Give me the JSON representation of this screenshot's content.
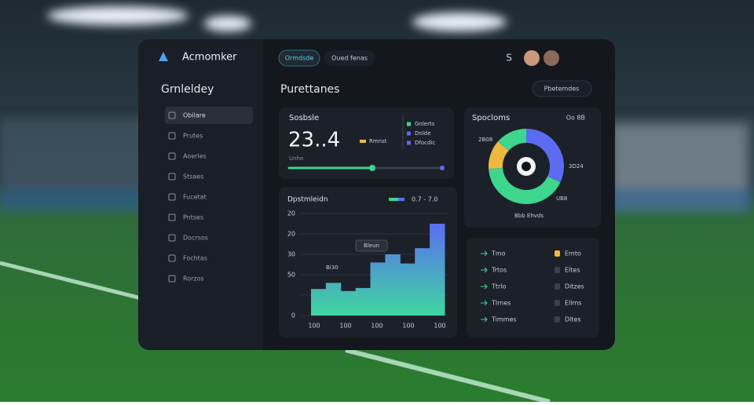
{
  "app": {
    "logo": "Acmomker",
    "tabs": [
      "Ormdsde",
      "Oued fenas"
    ],
    "user_initial": "S"
  },
  "sidebar": {
    "title": "Grnleldey",
    "items": [
      "Obilare",
      "Prutes",
      "Aoerles",
      "Stsaes",
      "Fucetat",
      "Pntses",
      "Docrsos",
      "Fochtas",
      "Rorzos"
    ]
  },
  "main": {
    "title": "Purettanes",
    "button": "Pbetemdes"
  },
  "stat_card": {
    "title": "Sosbsle",
    "value": "23..4",
    "badge": "Rmnst",
    "legend": [
      "Gnlerts",
      "Dnlde",
      "Dfocdic"
    ],
    "footer": "Unhe"
  },
  "bar_chart": {
    "type": "area",
    "title": "Dpstmleidn",
    "legend": "0.7 - 7.0",
    "annotations": [
      "Bleun",
      "Bi30"
    ],
    "y_labels": [
      "20",
      "20",
      "30",
      "50",
      "0"
    ],
    "x_labels": [
      "100",
      "100",
      "100",
      "100",
      "100"
    ],
    "ylim": [
      0,
      5
    ],
    "values": [
      1.3,
      1.6,
      1.2,
      1.35,
      2.6,
      3.0,
      2.55,
      3.3,
      4.5
    ]
  },
  "donut": {
    "type": "pie",
    "title": "Spocloms",
    "legend": "Oo 8B",
    "labels": [
      "2B08",
      "3D24",
      "UB8",
      "Bbb Ehvds"
    ],
    "values": [
      32,
      42,
      12.5,
      13.5
    ],
    "colors": [
      "#5b6cf0",
      "#3dd68c",
      "#f0b840",
      "#3dd68c"
    ]
  },
  "list": {
    "rows": [
      [
        "Tmo",
        "Emto"
      ],
      [
        "Trtos",
        "Eltes"
      ],
      [
        "Ttrlo",
        "Ditzes"
      ],
      [
        "Tlrnes",
        "Ellms"
      ],
      [
        "Timmes",
        "Dltes"
      ]
    ]
  }
}
